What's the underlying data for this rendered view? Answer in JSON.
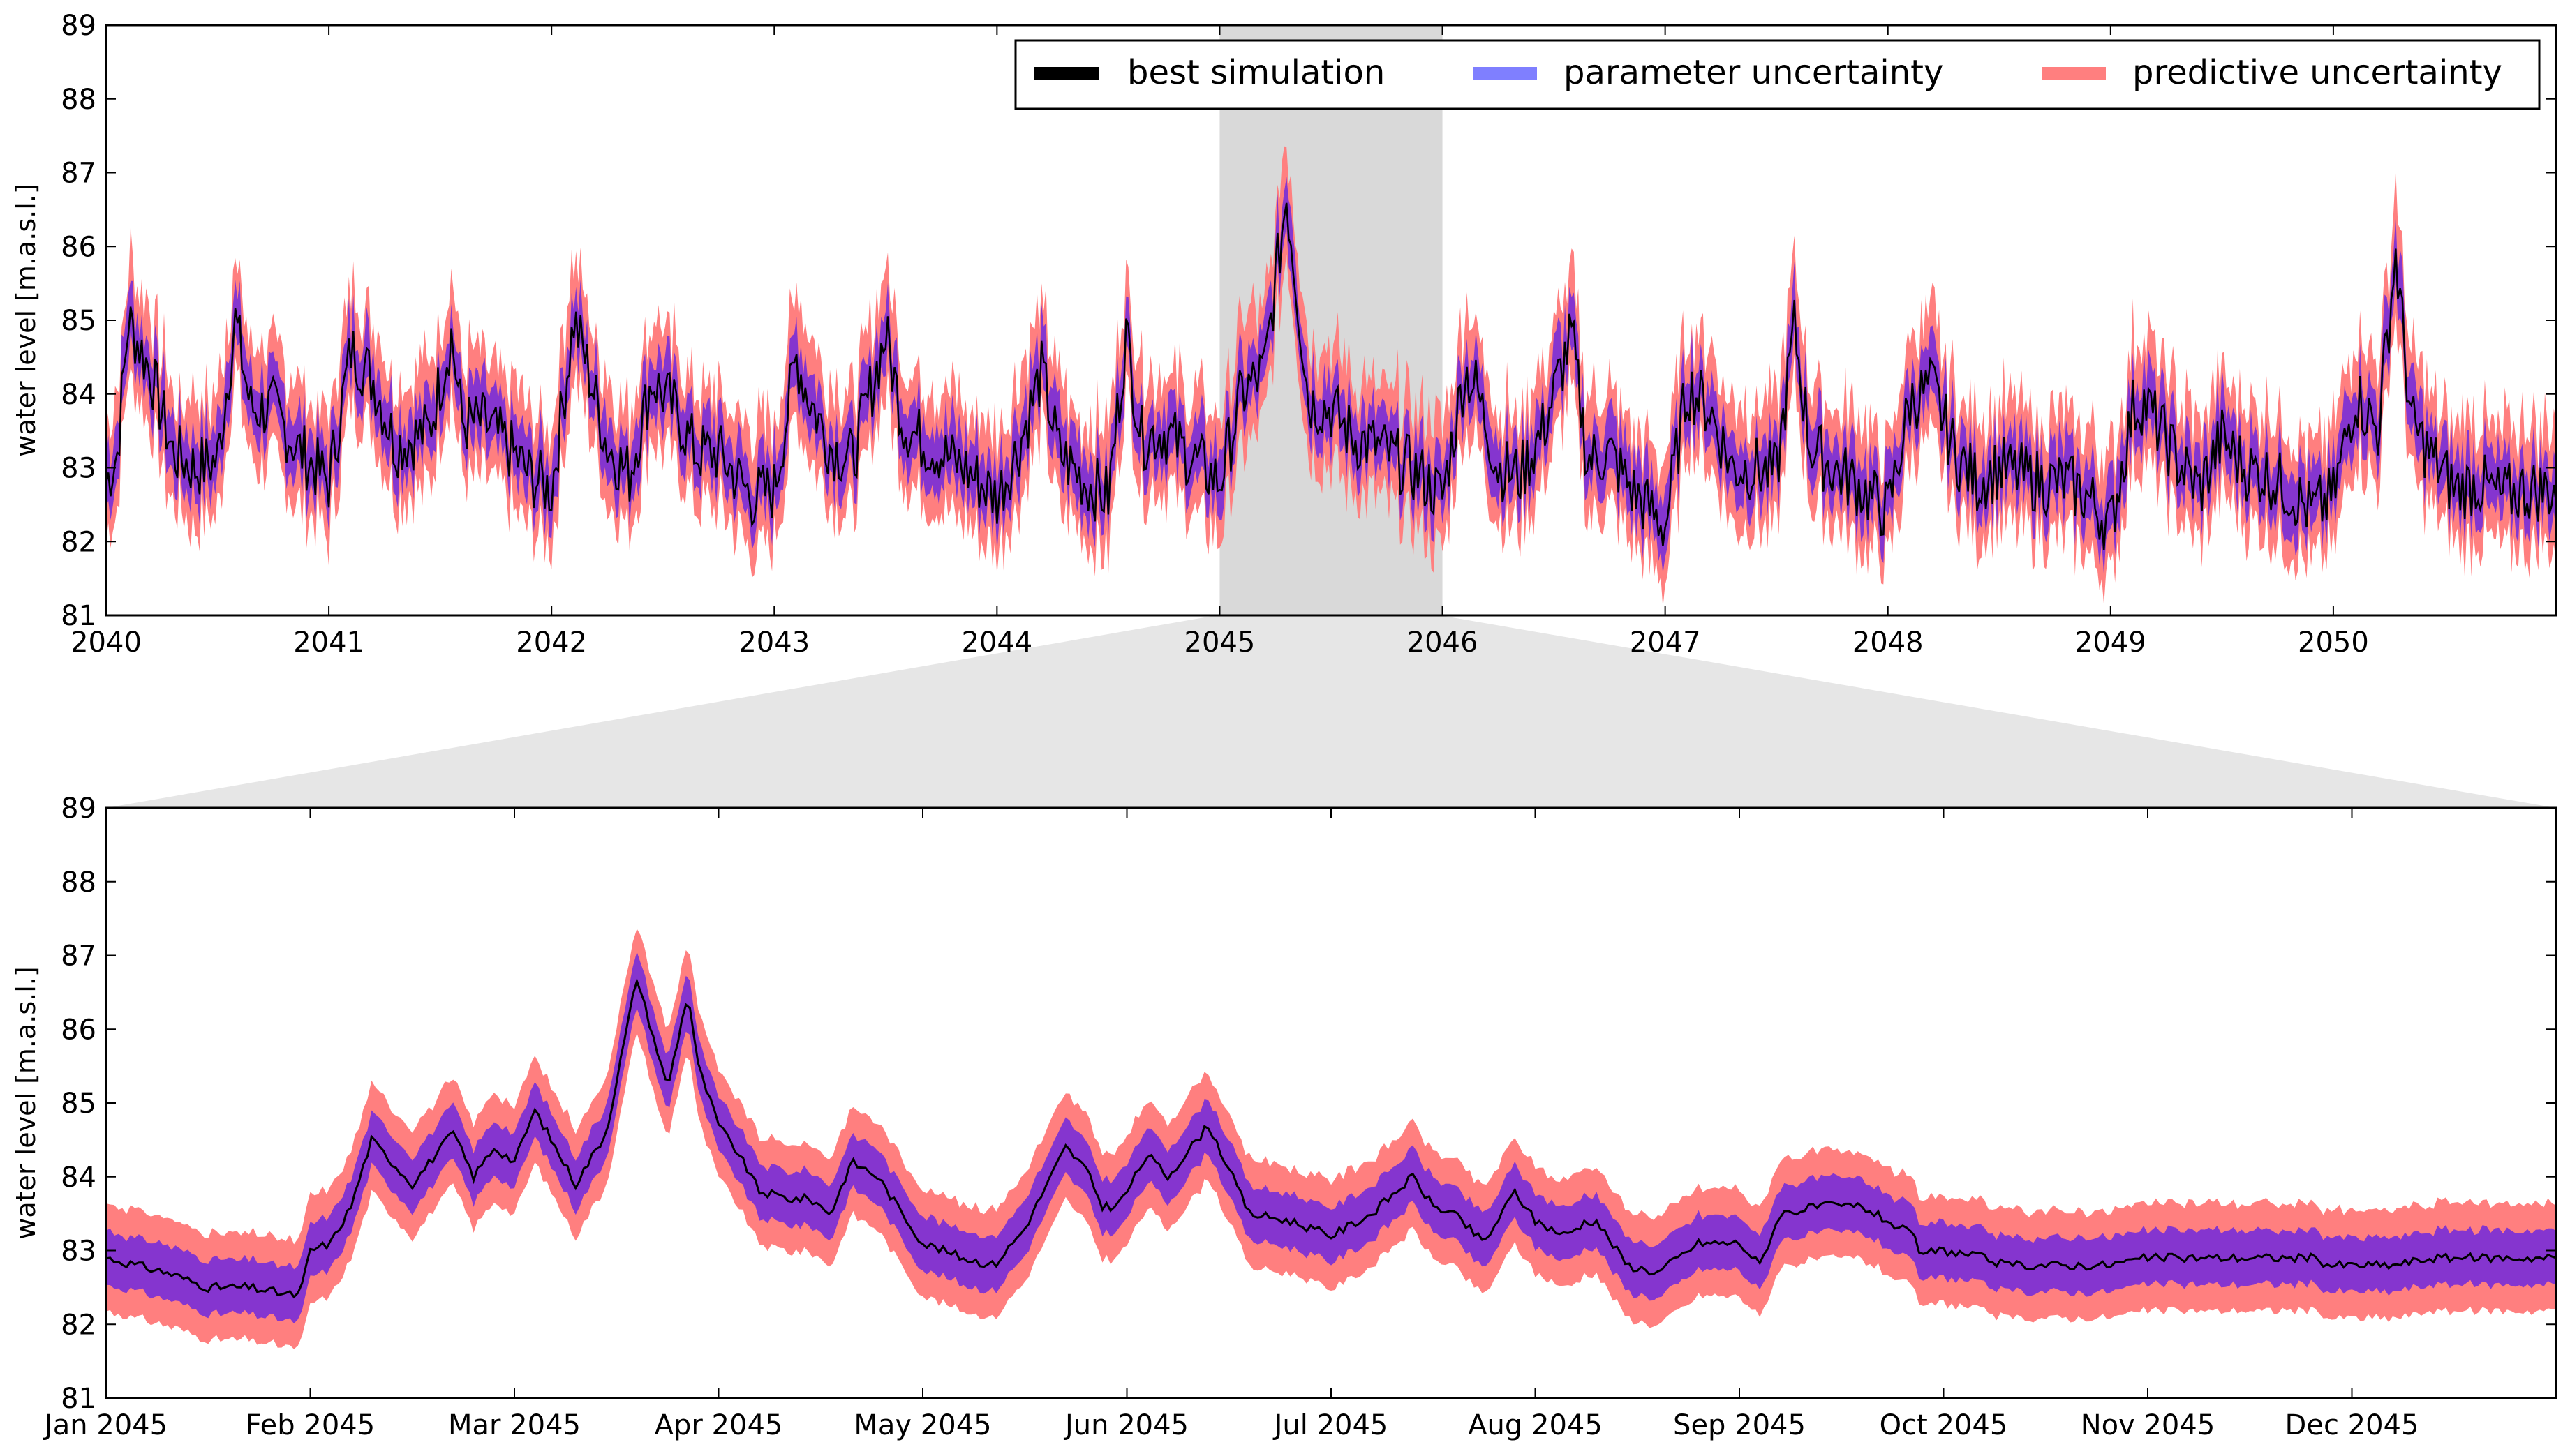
{
  "chart_data": [
    {
      "type": "line",
      "panel": "overview",
      "title": "",
      "xlabel": "",
      "ylabel": "water level [m.a.s.l.]",
      "xlim": [
        2040,
        2051
      ],
      "ylim": [
        81,
        89
      ],
      "x_ticks": [
        "2040",
        "2041",
        "2042",
        "2043",
        "2044",
        "2045",
        "2046",
        "2047",
        "2048",
        "2049",
        "2050"
      ],
      "y_ticks": [
        "81",
        "82",
        "83",
        "84",
        "85",
        "86",
        "87",
        "88",
        "89"
      ],
      "highlight_span": [
        2045,
        2046
      ],
      "legend": {
        "placement": "top-right",
        "entries": [
          {
            "label": "best simulation",
            "color": "#000000"
          },
          {
            "label": "parameter uncertainty",
            "color": "#7f7fff"
          },
          {
            "label": "predictive uncertainty",
            "color": "#ff7f7f"
          }
        ]
      },
      "series": [
        {
          "name": "best simulation",
          "x": [
            2040.0,
            2040.05,
            2040.1,
            2040.2,
            2040.3,
            2040.4,
            2040.5,
            2040.58,
            2040.65,
            2040.75,
            2040.85,
            2041.0,
            2041.1,
            2041.2,
            2041.3,
            2041.45,
            2041.55,
            2041.6,
            2041.7,
            2041.8,
            2041.9,
            2042.0,
            2042.1,
            2042.15,
            2042.25,
            2042.35,
            2042.45,
            2042.55,
            2042.65,
            2042.75,
            2042.9,
            2043.0,
            2043.1,
            2043.15,
            2043.25,
            2043.35,
            2043.5,
            2043.58,
            2043.65,
            2043.75,
            2043.85,
            2044.0,
            2044.1,
            2044.2,
            2044.28,
            2044.4,
            2044.5,
            2044.58,
            2044.65,
            2044.75,
            2044.85,
            2045.0,
            2045.1,
            2045.2,
            2045.3,
            2045.4,
            2045.5,
            2045.6,
            2045.7,
            2045.8,
            2045.9,
            2046.0,
            2046.1,
            2046.15,
            2046.25,
            2046.35,
            2046.45,
            2046.58,
            2046.65,
            2046.75,
            2046.85,
            2047.0,
            2047.1,
            2047.2,
            2047.3,
            2047.4,
            2047.5,
            2047.58,
            2047.65,
            2047.75,
            2047.85,
            2048.0,
            2048.1,
            2048.2,
            2048.3,
            2048.4,
            2048.5,
            2048.6,
            2048.7,
            2048.8,
            2048.9,
            2049.0,
            2049.1,
            2049.15,
            2049.3,
            2049.4,
            2049.5,
            2049.6,
            2049.7,
            2049.8,
            2049.9,
            2050.0,
            2050.1,
            2050.2,
            2050.28,
            2050.35,
            2050.45,
            2050.55,
            2050.65,
            2050.75,
            2050.85,
            2051.0
          ],
          "y": [
            82.8,
            83.2,
            85.0,
            84.3,
            83.2,
            83.0,
            83.1,
            85.0,
            83.8,
            83.8,
            83.3,
            82.8,
            84.6,
            84.2,
            83.3,
            83.5,
            84.8,
            83.6,
            83.6,
            83.3,
            82.9,
            82.7,
            85.0,
            84.5,
            83.3,
            82.9,
            84.2,
            83.8,
            83.2,
            83.2,
            82.6,
            82.7,
            84.5,
            84.0,
            83.3,
            83.1,
            84.8,
            83.6,
            83.4,
            83.2,
            83.0,
            82.6,
            83.3,
            84.3,
            83.2,
            82.8,
            82.6,
            84.8,
            83.4,
            83.5,
            83.2,
            82.8,
            84.0,
            84.3,
            86.7,
            83.9,
            83.8,
            83.4,
            83.3,
            83.1,
            82.9,
            82.6,
            84.3,
            84.1,
            83.0,
            82.9,
            83.5,
            84.8,
            83.1,
            83.2,
            82.7,
            82.2,
            84.1,
            83.8,
            83.0,
            83.0,
            82.9,
            84.9,
            83.3,
            83.0,
            82.8,
            82.4,
            83.9,
            84.1,
            83.2,
            82.8,
            83.0,
            82.9,
            82.8,
            82.8,
            82.6,
            82.2,
            83.8,
            83.9,
            83.1,
            82.7,
            83.4,
            83.0,
            82.9,
            82.7,
            82.4,
            82.6,
            84.0,
            83.5,
            85.9,
            83.6,
            83.1,
            82.7,
            82.8,
            82.6,
            82.7,
            82.7
          ]
        },
        {
          "name": "parameter uncertainty",
          "half_width": 0.3
        },
        {
          "name": "predictive uncertainty",
          "half_width": 0.65
        }
      ]
    },
    {
      "type": "line",
      "panel": "zoom",
      "title": "",
      "xlabel": "",
      "ylabel": "water level [m.a.s.l.]",
      "xlim": [
        0,
        12
      ],
      "ylim": [
        81,
        89
      ],
      "x_ticks": [
        "Jan 2045",
        "Feb 2045",
        "Mar 2045",
        "Apr 2045",
        "May 2045",
        "Jun 2045",
        "Jul 2045",
        "Aug 2045",
        "Sep 2045",
        "Oct 2045",
        "Nov 2045",
        "Dec 2045"
      ],
      "y_ticks": [
        "81",
        "82",
        "83",
        "84",
        "85",
        "86",
        "87",
        "88",
        "89"
      ],
      "series": [
        {
          "name": "best simulation",
          "x": [
            0,
            0.3,
            0.5,
            0.7,
            0.9,
            0.95,
            1.0,
            1.1,
            1.2,
            1.3,
            1.5,
            1.7,
            1.8,
            1.9,
            2.0,
            2.1,
            2.3,
            2.45,
            2.6,
            2.75,
            2.85,
            2.9,
            3.0,
            3.1,
            3.2,
            3.35,
            3.45,
            3.55,
            3.65,
            3.72,
            3.78,
            3.9,
            3.95,
            4.0,
            4.2,
            4.35,
            4.5,
            4.7,
            4.8,
            4.88,
            4.95,
            5.0,
            5.1,
            5.2,
            5.4,
            5.6,
            5.8,
            6.0,
            6.2,
            6.4,
            6.5,
            6.6,
            6.75,
            6.9,
            7.0,
            7.15,
            7.25,
            7.3,
            7.45,
            7.6,
            7.8,
            8.0,
            8.1,
            8.2,
            8.4,
            8.6,
            8.85,
            8.9,
            8.95,
            9.0,
            9.2,
            9.3,
            9.4,
            9.6,
            9.8,
            10.0,
            10.1,
            10.2,
            10.4,
            10.5,
            10.6,
            10.8,
            10.9,
            11.0,
            11.2,
            11.4,
            11.6,
            11.8,
            12.0
          ],
          "y": [
            82.9,
            82.7,
            82.5,
            82.5,
            82.4,
            82.4,
            83.0,
            83.1,
            83.6,
            84.5,
            83.9,
            84.6,
            84.0,
            84.4,
            84.2,
            84.9,
            83.9,
            84.6,
            86.7,
            85.2,
            86.5,
            85.5,
            84.7,
            84.3,
            83.8,
            83.7,
            83.7,
            83.5,
            84.2,
            84.1,
            84.0,
            83.5,
            83.3,
            83.1,
            82.9,
            82.8,
            83.3,
            84.4,
            84.1,
            83.6,
            83.6,
            83.8,
            84.3,
            84.0,
            84.7,
            83.5,
            83.4,
            83.2,
            83.5,
            84.0,
            83.6,
            83.5,
            83.1,
            83.8,
            83.4,
            83.2,
            83.4,
            83.4,
            82.8,
            82.7,
            83.1,
            83.1,
            82.8,
            83.5,
            83.6,
            83.6,
            83.2,
            82.9,
            83.0,
            83.0,
            82.9,
            82.8,
            82.8,
            82.8,
            82.8,
            82.9,
            82.9,
            82.9,
            82.9,
            82.9,
            82.9,
            82.9,
            82.8,
            82.8,
            82.8,
            82.9,
            82.9,
            82.9,
            82.9
          ]
        },
        {
          "name": "parameter uncertainty",
          "half_width": 0.35
        },
        {
          "name": "predictive uncertainty",
          "half_width": 0.7
        }
      ]
    }
  ]
}
